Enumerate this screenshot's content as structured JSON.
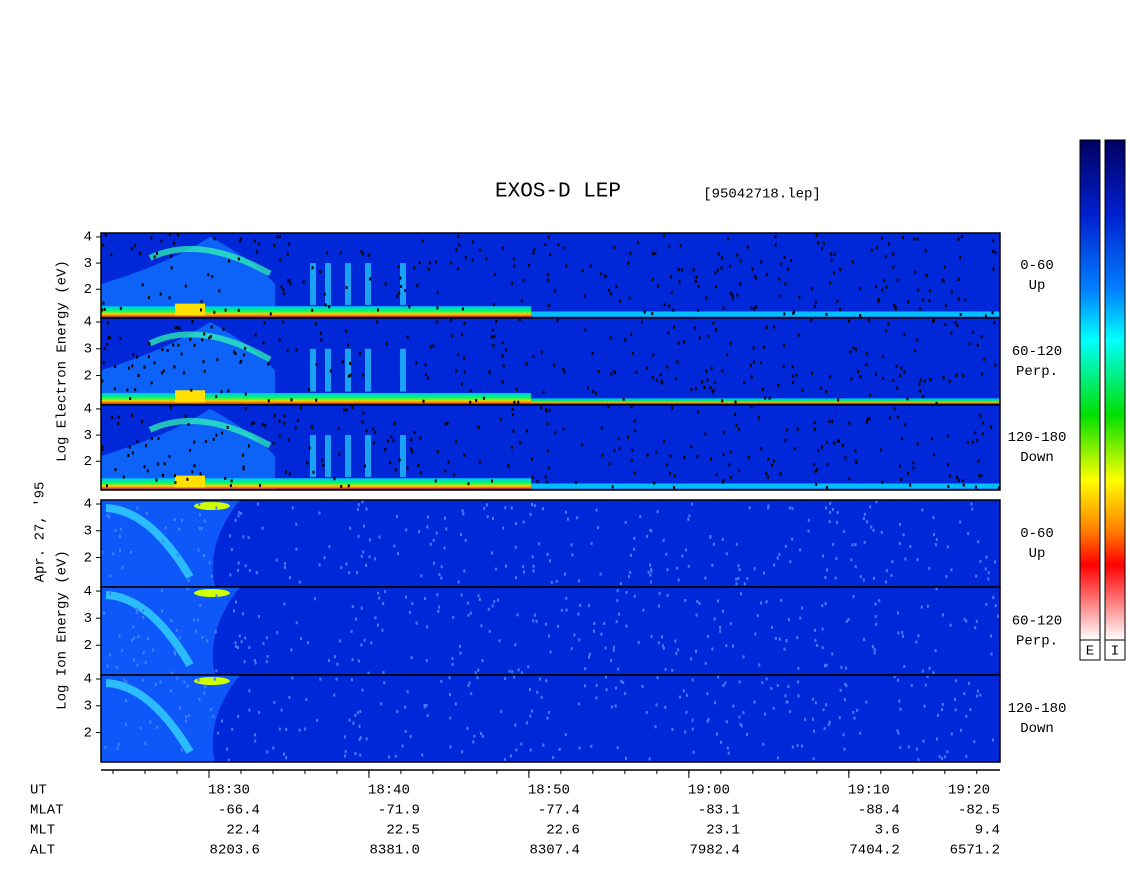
{
  "chart_data": {
    "type": "spectrogram",
    "title": "EXOS-D LEP",
    "file": "[95042718.lep]",
    "date": "Apr. 27, '95",
    "electron_label": "Log Electron Energy (eV)",
    "ion_label": "Log Ion Energy (eV)",
    "panels": [
      {
        "species": "electron",
        "pitch": "0-60",
        "direction": "Up"
      },
      {
        "species": "electron",
        "pitch": "60-120",
        "direction": "Perp."
      },
      {
        "species": "electron",
        "pitch": "120-180",
        "direction": "Down"
      },
      {
        "species": "ion",
        "pitch": "0-60",
        "direction": "Up"
      },
      {
        "species": "ion",
        "pitch": "60-120",
        "direction": "Perp."
      },
      {
        "species": "ion",
        "pitch": "120-180",
        "direction": "Down"
      }
    ],
    "ylim": [
      0.9,
      4.15
    ],
    "yticks": [
      2,
      3,
      4
    ],
    "xlim": [
      23.25,
      79.45
    ],
    "xticks": [
      {
        "value": 30,
        "label": "18:30"
      },
      {
        "value": 40,
        "label": "18:40"
      },
      {
        "value": 50,
        "label": "18:50"
      },
      {
        "value": 60,
        "label": "19:00"
      },
      {
        "value": 70,
        "label": "19:10"
      },
      {
        "value": 80,
        "label": "19:20"
      }
    ],
    "minor_step": 2,
    "orbit_rows": [
      {
        "name": "UT"
      },
      {
        "name": "MLAT",
        "values": [
          -66.4,
          -71.9,
          -77.4,
          -83.1,
          -88.4,
          -82.5
        ],
        "value_labels": [
          "-66.4",
          "-71.9",
          "-77.4",
          "-83.1",
          "-88.4",
          "-82.5"
        ]
      },
      {
        "name": "MLT",
        "values": [
          22.4,
          22.5,
          22.6,
          23.1,
          3.6,
          9.4
        ],
        "value_labels": [
          "22.4",
          "22.5",
          "22.6",
          "23.1",
          "3.6",
          "9.4"
        ]
      },
      {
        "name": "ALT",
        "values": [
          8203.6,
          8381.0,
          8307.4,
          7982.4,
          7404.2,
          6571.2
        ],
        "value_labels": [
          "8203.6",
          "8381.0",
          "8307.4",
          "7982.4",
          "7404.2",
          "6571.2"
        ]
      }
    ],
    "colorbars": [
      "E",
      "I"
    ]
  }
}
